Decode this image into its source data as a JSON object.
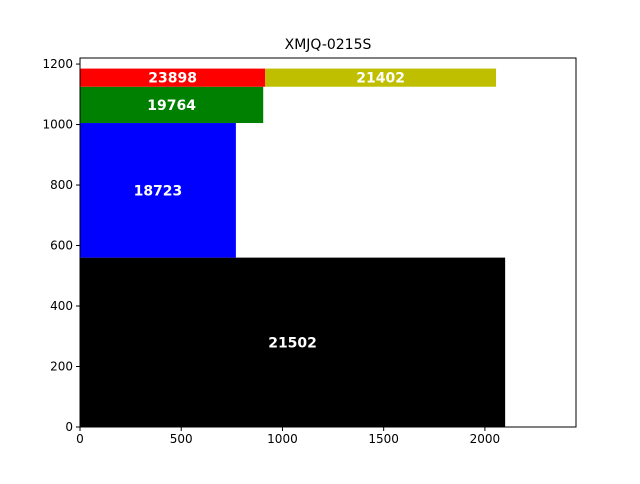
{
  "chart_data": {
    "type": "bar",
    "title": "XMJQ-0215S",
    "xlabel": "",
    "ylabel": "",
    "xlim": [
      0,
      2450
    ],
    "ylim": [
      0,
      1220
    ],
    "xticks": [
      "0",
      "500",
      "1000",
      "1500",
      "2000"
    ],
    "yticks": [
      "0",
      "200",
      "400",
      "600",
      "800",
      "1000",
      "1200"
    ],
    "grid": false,
    "legend": "none",
    "rects": [
      {
        "label": "21502",
        "x": 0,
        "y": 0,
        "w": 2100,
        "h": 560,
        "color": "#000000"
      },
      {
        "label": "18723",
        "x": 0,
        "y": 560,
        "w": 770,
        "h": 445,
        "color": "#0000ff"
      },
      {
        "label": "19764",
        "x": 0,
        "y": 1005,
        "w": 905,
        "h": 120,
        "color": "#008000"
      },
      {
        "label": "23898",
        "x": 0,
        "y": 1125,
        "w": 915,
        "h": 60,
        "color": "#ff0000"
      },
      {
        "label": "21402",
        "x": 915,
        "y": 1125,
        "w": 1140,
        "h": 60,
        "color": "#bfbf00"
      }
    ]
  }
}
